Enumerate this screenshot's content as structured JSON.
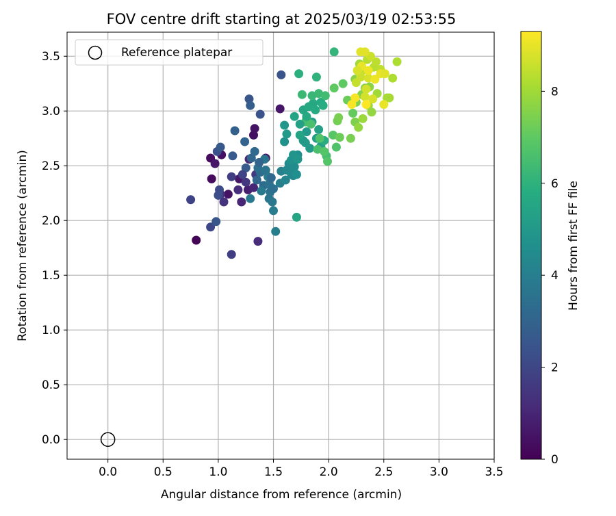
{
  "chart_data": {
    "type": "scatter",
    "title": "FOV centre drift starting at 2025/03/19 02:53:55",
    "xlabel": "Angular distance from reference (arcmin)",
    "ylabel": "Rotation from reference (arcmin)",
    "xlim": [
      -0.37,
      3.5
    ],
    "ylim": [
      -0.18,
      3.72
    ],
    "xticks": [
      "0.0",
      "0.5",
      "1.0",
      "1.5",
      "2.0",
      "2.5",
      "3.0",
      "3.5"
    ],
    "yticks": [
      "0.0",
      "0.5",
      "1.0",
      "1.5",
      "2.0",
      "2.5",
      "3.0",
      "3.5"
    ],
    "grid": true,
    "legend": {
      "placement": "top-left",
      "entries": [
        "Reference platepar"
      ]
    },
    "reference_point": {
      "x": 0.0,
      "y": 0.0,
      "label": "Reference platepar"
    },
    "colorbar": {
      "label": "Hours from first FF file",
      "colormap": "viridis",
      "range": [
        0,
        9.3
      ],
      "ticks": [
        "0",
        "2",
        "4",
        "6",
        "8"
      ]
    },
    "colormap_stops": [
      "#440154",
      "#472c7a",
      "#3b518b",
      "#2c718e",
      "#21908d",
      "#27ad81",
      "#5cc863",
      "#aadc32",
      "#fde725"
    ],
    "series": [
      {
        "points": [
          [
            0.8,
            1.82,
            0.1
          ],
          [
            0.93,
            2.57,
            0.3
          ],
          [
            0.94,
            2.38,
            0.3
          ],
          [
            1.03,
            2.6,
            0.4
          ],
          [
            1.09,
            2.24,
            0.5
          ],
          [
            0.97,
            2.52,
            0.6
          ],
          [
            1.32,
            2.78,
            0.4
          ],
          [
            1.33,
            2.84,
            0.5
          ],
          [
            1.19,
            2.38,
            0.6
          ],
          [
            1.27,
            2.28,
            0.8
          ],
          [
            1.43,
            2.57,
            0.6
          ],
          [
            1.21,
            2.17,
            1.0
          ],
          [
            1.32,
            2.3,
            1.0
          ],
          [
            1.28,
            2.56,
            1.1
          ],
          [
            1.18,
            2.28,
            1.2
          ],
          [
            1.36,
            1.81,
            1.2
          ],
          [
            1.02,
            2.24,
            1.3
          ],
          [
            1.05,
            2.17,
            1.4
          ],
          [
            1.25,
            2.35,
            1.5
          ],
          [
            1.34,
            2.42,
            1.6
          ],
          [
            1.12,
            2.4,
            1.7
          ],
          [
            1.12,
            1.69,
            1.7
          ],
          [
            0.75,
            2.19,
            1.9
          ],
          [
            1.56,
            3.02,
            0.6
          ],
          [
            0.93,
            1.94,
            2.0
          ],
          [
            1.01,
            2.28,
            2.1
          ],
          [
            0.99,
            2.63,
            2.3
          ],
          [
            1.38,
            2.97,
            2.4
          ],
          [
            1.57,
            3.33,
            2.4
          ],
          [
            0.98,
            1.99,
            2.5
          ],
          [
            1.28,
            3.11,
            2.5
          ],
          [
            1.0,
            2.23,
            2.2
          ],
          [
            1.02,
            2.67,
            2.6
          ],
          [
            1.13,
            2.59,
            2.7
          ],
          [
            1.25,
            2.48,
            2.7
          ],
          [
            1.29,
            3.05,
            2.8
          ],
          [
            1.15,
            2.82,
            2.9
          ],
          [
            1.24,
            2.72,
            3.0
          ],
          [
            1.3,
            2.57,
            3.1
          ],
          [
            1.35,
            2.37,
            3.1
          ],
          [
            1.33,
            2.63,
            3.2
          ],
          [
            1.38,
            2.44,
            3.3
          ],
          [
            1.41,
            2.32,
            3.3
          ],
          [
            1.36,
            2.48,
            3.4
          ],
          [
            1.46,
            2.33,
            3.5
          ],
          [
            1.47,
            2.26,
            3.5
          ],
          [
            1.42,
            2.56,
            3.6
          ],
          [
            1.46,
            2.2,
            3.6
          ],
          [
            1.49,
            2.17,
            3.7
          ],
          [
            1.29,
            2.2,
            3.8
          ],
          [
            1.39,
            2.27,
            3.8
          ],
          [
            1.45,
            2.4,
            3.9
          ],
          [
            1.5,
            2.09,
            3.9
          ],
          [
            1.52,
            1.9,
            4.0
          ],
          [
            1.56,
            2.34,
            4.0
          ],
          [
            1.57,
            2.45,
            4.1
          ],
          [
            1.61,
            2.37,
            4.2
          ],
          [
            1.68,
            2.41,
            4.3
          ],
          [
            1.62,
            2.46,
            4.3
          ],
          [
            1.64,
            2.52,
            4.4
          ],
          [
            1.66,
            2.43,
            4.4
          ],
          [
            1.69,
            2.49,
            4.5
          ],
          [
            1.71,
            2.42,
            4.6
          ],
          [
            1.72,
            2.6,
            4.6
          ],
          [
            1.66,
            2.55,
            4.7
          ],
          [
            1.6,
            2.72,
            4.7
          ],
          [
            1.68,
            2.6,
            4.8
          ],
          [
            1.72,
            2.56,
            4.9
          ],
          [
            1.6,
            2.87,
            4.9
          ],
          [
            1.77,
            2.73,
            5.0
          ],
          [
            1.8,
            2.81,
            5.0
          ],
          [
            1.79,
            2.71,
            5.1
          ],
          [
            1.83,
            2.66,
            5.1
          ],
          [
            1.85,
            2.9,
            5.2
          ],
          [
            1.89,
            2.75,
            5.2
          ],
          [
            1.91,
            2.83,
            5.3
          ],
          [
            1.93,
            2.68,
            5.3
          ],
          [
            1.74,
            2.78,
            5.4
          ],
          [
            1.69,
            2.95,
            5.4
          ],
          [
            1.71,
            2.03,
            5.5
          ],
          [
            1.77,
            3.01,
            5.5
          ],
          [
            1.82,
            3.04,
            5.6
          ],
          [
            1.86,
            3.07,
            5.6
          ],
          [
            1.88,
            3.01,
            5.7
          ],
          [
            1.93,
            3.08,
            5.7
          ],
          [
            1.96,
            2.73,
            5.8
          ],
          [
            1.95,
            3.05,
            5.8
          ],
          [
            1.73,
            3.34,
            5.9
          ],
          [
            1.89,
            3.31,
            6.0
          ],
          [
            2.05,
            3.54,
            6.1
          ],
          [
            1.85,
            3.14,
            6.2
          ],
          [
            1.76,
            3.15,
            6.3
          ],
          [
            1.91,
            3.16,
            6.3
          ],
          [
            1.97,
            3.14,
            6.4
          ],
          [
            1.8,
            2.93,
            6.4
          ],
          [
            1.98,
            2.59,
            6.5
          ],
          [
            1.79,
            2.9,
            6.5
          ],
          [
            1.84,
            2.88,
            6.6
          ],
          [
            1.9,
            2.65,
            6.6
          ],
          [
            2.07,
            2.67,
            6.7
          ],
          [
            1.92,
            2.75,
            6.7
          ],
          [
            1.96,
            2.63,
            6.8
          ],
          [
            1.99,
            2.54,
            6.8
          ],
          [
            2.04,
            2.78,
            6.9
          ],
          [
            2.05,
            3.21,
            7.0
          ],
          [
            2.13,
            3.25,
            7.0
          ],
          [
            2.22,
            2.98,
            7.1
          ],
          [
            2.1,
            2.76,
            7.2
          ],
          [
            2.17,
            3.1,
            7.2
          ],
          [
            2.08,
            2.91,
            7.3
          ],
          [
            2.09,
            2.94,
            7.4
          ],
          [
            2.2,
            2.75,
            7.4
          ],
          [
            2.24,
            2.9,
            7.5
          ],
          [
            2.25,
            3.08,
            7.5
          ],
          [
            2.24,
            3.29,
            7.6
          ],
          [
            2.3,
            3.15,
            7.6
          ],
          [
            2.33,
            3.21,
            7.7
          ],
          [
            2.37,
            3.22,
            7.7
          ],
          [
            2.39,
            2.99,
            7.8
          ],
          [
            2.27,
            2.85,
            7.8
          ],
          [
            2.31,
            2.93,
            7.9
          ],
          [
            2.36,
            3.05,
            7.9
          ],
          [
            2.28,
            3.43,
            8.0
          ],
          [
            2.44,
            3.16,
            8.0
          ],
          [
            2.53,
            3.12,
            8.1
          ],
          [
            2.55,
            3.12,
            8.1
          ],
          [
            2.58,
            3.3,
            8.2
          ],
          [
            2.62,
            3.45,
            8.2
          ],
          [
            2.35,
            3.47,
            8.3
          ],
          [
            2.41,
            3.4,
            8.3
          ],
          [
            2.43,
            3.45,
            8.4
          ],
          [
            2.47,
            3.38,
            8.4
          ],
          [
            2.31,
            3.37,
            8.5
          ],
          [
            2.25,
            3.26,
            8.5
          ],
          [
            2.38,
            3.5,
            8.6
          ],
          [
            2.29,
            3.31,
            8.6
          ],
          [
            2.33,
            3.13,
            8.7
          ],
          [
            2.34,
            3.2,
            8.7
          ],
          [
            2.36,
            3.3,
            8.8
          ],
          [
            2.4,
            3.11,
            8.8
          ],
          [
            2.33,
            3.54,
            8.9
          ],
          [
            2.29,
            3.54,
            8.9
          ],
          [
            2.5,
            3.06,
            9.0
          ],
          [
            2.3,
            3.41,
            9.0
          ],
          [
            2.36,
            3.37,
            9.1
          ],
          [
            2.42,
            3.29,
            9.1
          ],
          [
            2.24,
            3.12,
            9.2
          ],
          [
            2.21,
            3.06,
            9.2
          ],
          [
            2.34,
            3.06,
            9.3
          ],
          [
            2.47,
            3.34,
            9.0
          ],
          [
            2.51,
            3.34,
            8.9
          ],
          [
            2.26,
            3.37,
            8.8
          ],
          [
            1.48,
            2.39,
            3.2
          ],
          [
            1.43,
            2.46,
            3.6
          ],
          [
            1.22,
            2.42,
            1.9
          ],
          [
            1.37,
            2.53,
            3.0
          ],
          [
            1.5,
            2.29,
            3.4
          ],
          [
            1.62,
            2.79,
            5.0
          ],
          [
            1.74,
            2.88,
            5.3
          ],
          [
            1.8,
            2.95,
            5.6
          ]
        ]
      }
    ]
  }
}
